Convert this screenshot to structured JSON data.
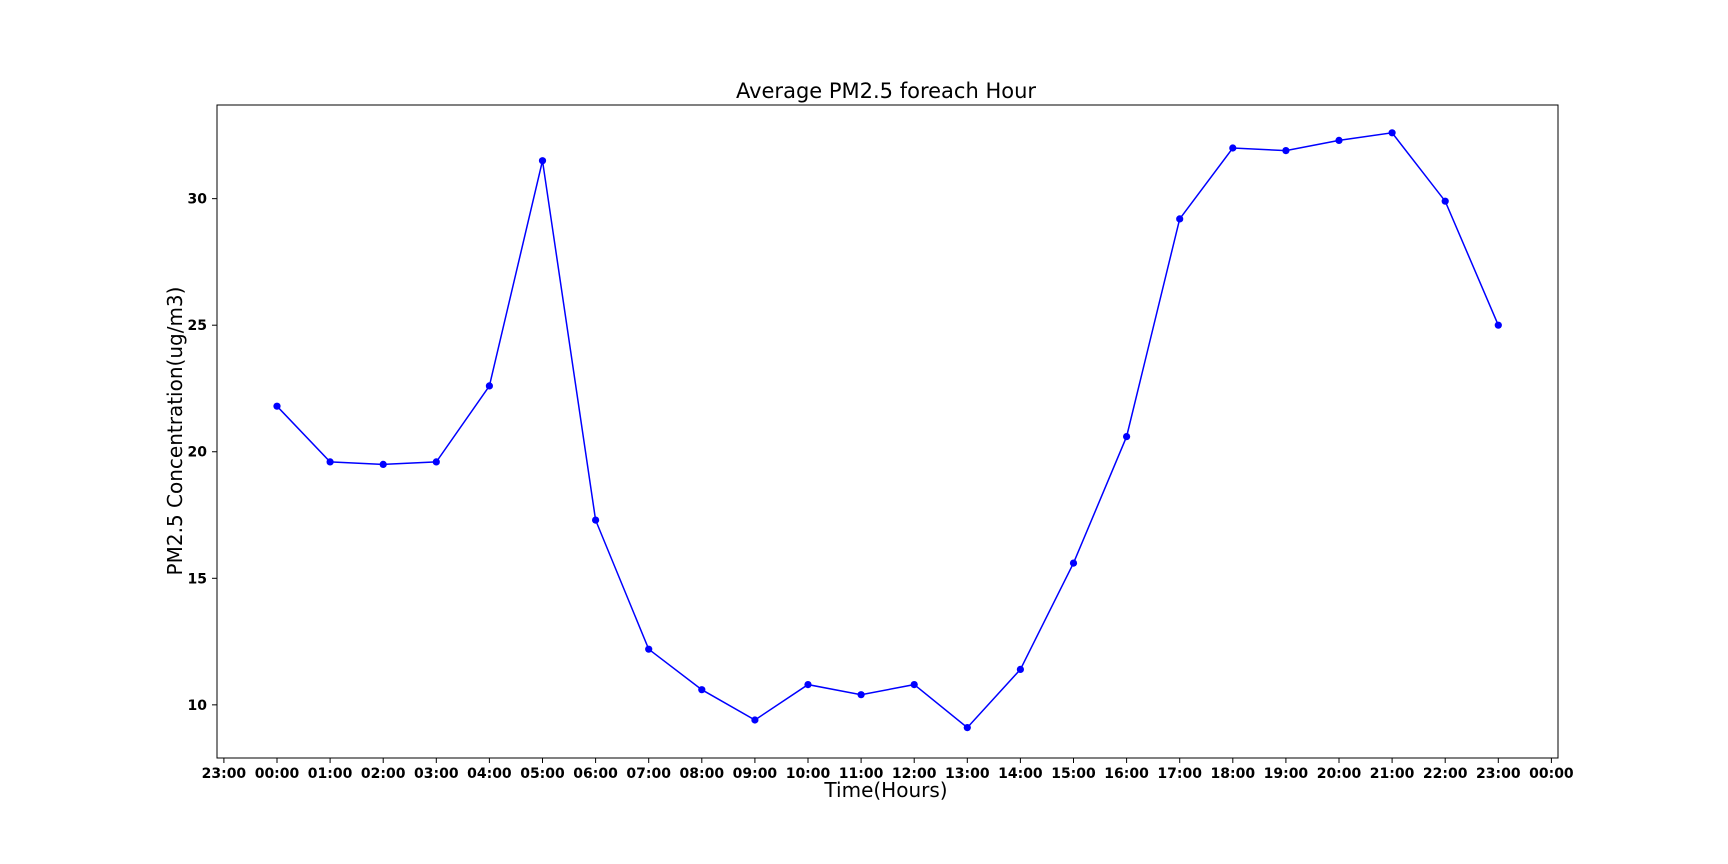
{
  "chart_data": {
    "type": "line",
    "title": "Average PM2.5 foreach Hour",
    "xlabel": "Time(Hours)",
    "ylabel": "PM2.5 Concentration(ug/m3)",
    "x_tick_labels": [
      "23:00",
      "00:00",
      "01:00",
      "02:00",
      "03:00",
      "04:00",
      "05:00",
      "06:00",
      "07:00",
      "08:00",
      "09:00",
      "10:00",
      "11:00",
      "12:00",
      "13:00",
      "14:00",
      "15:00",
      "16:00",
      "17:00",
      "18:00",
      "19:00",
      "20:00",
      "21:00",
      "22:00",
      "23:00",
      "00:00"
    ],
    "y_ticks": [
      10,
      15,
      20,
      25,
      30
    ],
    "xlim": [
      "22:50",
      "00:10"
    ],
    "ylim": [
      7.9,
      33.7
    ],
    "grid": false,
    "series": [
      {
        "color": "#0000ff",
        "marker": "circle",
        "x": [
          "00:00",
          "01:00",
          "02:00",
          "03:00",
          "04:00",
          "05:00",
          "06:00",
          "07:00",
          "08:00",
          "09:00",
          "10:00",
          "11:00",
          "12:00",
          "13:00",
          "14:00",
          "15:00",
          "16:00",
          "17:00",
          "18:00",
          "19:00",
          "20:00",
          "21:00",
          "22:00",
          "23:00"
        ],
        "values": [
          21.8,
          19.6,
          19.5,
          19.6,
          22.6,
          31.5,
          17.3,
          12.2,
          10.6,
          9.4,
          10.8,
          10.4,
          10.8,
          9.1,
          11.4,
          15.6,
          20.6,
          29.2,
          32.0,
          31.9,
          32.3,
          32.6,
          29.9,
          25.0
        ]
      }
    ]
  }
}
